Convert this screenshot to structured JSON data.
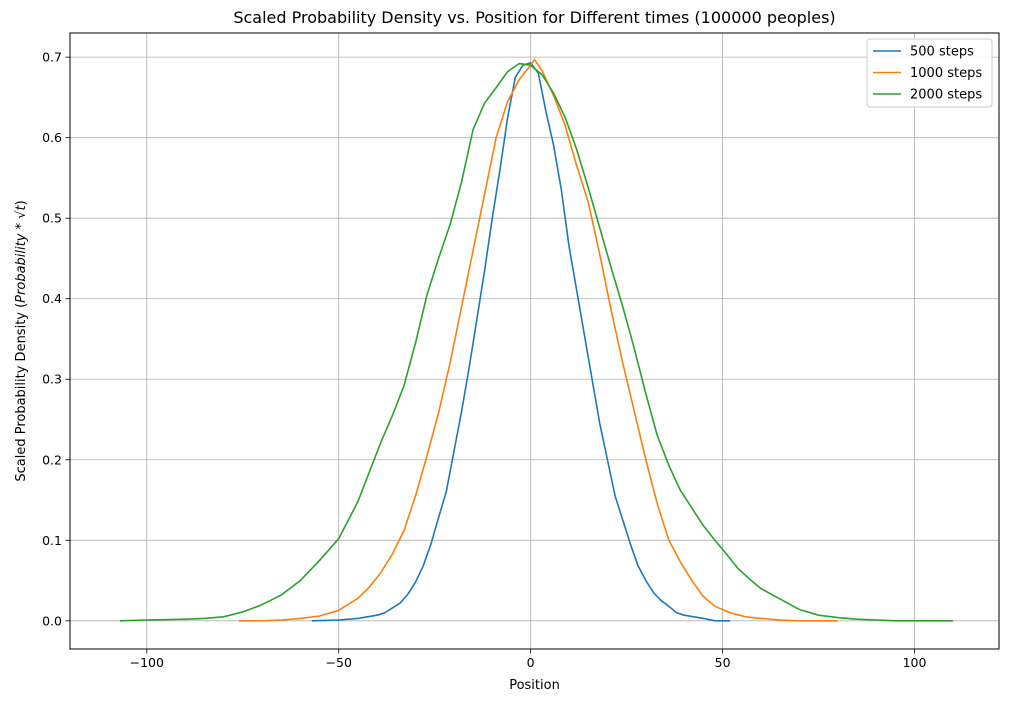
{
  "chart_data": {
    "type": "line",
    "title": "Scaled Probability Density vs. Position for Different times (100000 peoples)",
    "xlabel": "Position",
    "ylabel_prefix": "Scaled Probability Density (",
    "ylabel_math": "Probability * √t",
    "ylabel_suffix": ")",
    "xlim": [
      -120,
      122
    ],
    "ylim": [
      -0.035,
      0.73
    ],
    "xticks": [
      -100,
      -50,
      0,
      50,
      100
    ],
    "xtick_labels": [
      "−100",
      "−50",
      "0",
      "50",
      "100"
    ],
    "yticks": [
      0.0,
      0.1,
      0.2,
      0.3,
      0.4,
      0.5,
      0.6,
      0.7
    ],
    "ytick_labels": [
      "0.0",
      "0.1",
      "0.2",
      "0.3",
      "0.4",
      "0.5",
      "0.6",
      "0.7"
    ],
    "grid": true,
    "legend_position": "top-right",
    "series": [
      {
        "name": "500 steps",
        "color": "#1f77b4",
        "x": [
          -57,
          -50,
          -45,
          -40,
          -38,
          -36,
          -34,
          -32,
          -30,
          -28,
          -26,
          -24,
          -22,
          -20,
          -18,
          -16,
          -14,
          -12,
          -10,
          -8,
          -6,
          -4,
          -2,
          0,
          2,
          4,
          6,
          8,
          10,
          12,
          14,
          16,
          18,
          20,
          22,
          24,
          26,
          28,
          30,
          32,
          34,
          36,
          38,
          40,
          45,
          48,
          52
        ],
        "y": [
          0.0,
          0.001,
          0.003,
          0.007,
          0.01,
          0.016,
          0.022,
          0.033,
          0.048,
          0.068,
          0.095,
          0.128,
          0.16,
          0.21,
          0.26,
          0.315,
          0.375,
          0.435,
          0.5,
          0.56,
          0.625,
          0.675,
          0.69,
          0.693,
          0.68,
          0.632,
          0.59,
          0.535,
          0.465,
          0.41,
          0.355,
          0.3,
          0.245,
          0.2,
          0.155,
          0.125,
          0.095,
          0.068,
          0.05,
          0.035,
          0.025,
          0.018,
          0.01,
          0.007,
          0.003,
          0.0,
          0.0
        ]
      },
      {
        "name": "1000 steps",
        "color": "#ff7f0e",
        "x": [
          -76,
          -70,
          -65,
          -60,
          -55,
          -50,
          -45,
          -42,
          -39,
          -36,
          -33,
          -30,
          -27,
          -24,
          -21,
          -18,
          -15,
          -12,
          -9,
          -6,
          -3,
          0,
          1,
          3,
          6,
          9,
          12,
          15,
          18,
          21,
          24,
          27,
          30,
          33,
          36,
          39,
          42,
          45,
          48,
          52,
          56,
          60,
          65,
          70,
          75,
          80
        ],
        "y": [
          0.0,
          0.0,
          0.001,
          0.003,
          0.006,
          0.013,
          0.028,
          0.042,
          0.06,
          0.083,
          0.112,
          0.155,
          0.205,
          0.258,
          0.32,
          0.39,
          0.46,
          0.53,
          0.6,
          0.645,
          0.672,
          0.69,
          0.697,
          0.683,
          0.652,
          0.615,
          0.565,
          0.52,
          0.455,
          0.385,
          0.32,
          0.26,
          0.2,
          0.145,
          0.1,
          0.073,
          0.05,
          0.03,
          0.018,
          0.01,
          0.005,
          0.003,
          0.001,
          0.0,
          0.0,
          0.0
        ]
      },
      {
        "name": "2000 steps",
        "color": "#2ca02c",
        "x": [
          -107,
          -100,
          -90,
          -85,
          -80,
          -75,
          -70,
          -65,
          -60,
          -55,
          -50,
          -45,
          -42,
          -39,
          -36,
          -33,
          -30,
          -27,
          -24,
          -21,
          -18,
          -15,
          -12,
          -9,
          -6,
          -3,
          0,
          3,
          6,
          9,
          12,
          15,
          18,
          21,
          24,
          27,
          30,
          33,
          36,
          39,
          42,
          45,
          48,
          51,
          54,
          57,
          60,
          65,
          70,
          75,
          80,
          85,
          90,
          95,
          100,
          105,
          110
        ],
        "y": [
          0.0,
          0.001,
          0.002,
          0.003,
          0.005,
          0.011,
          0.02,
          0.032,
          0.05,
          0.075,
          0.102,
          0.148,
          0.185,
          0.222,
          0.255,
          0.292,
          0.345,
          0.405,
          0.45,
          0.492,
          0.545,
          0.61,
          0.643,
          0.662,
          0.682,
          0.692,
          0.69,
          0.678,
          0.655,
          0.625,
          0.585,
          0.538,
          0.488,
          0.438,
          0.39,
          0.338,
          0.282,
          0.23,
          0.193,
          0.162,
          0.14,
          0.118,
          0.1,
          0.083,
          0.065,
          0.052,
          0.04,
          0.027,
          0.014,
          0.007,
          0.004,
          0.002,
          0.001,
          0.0,
          0.0,
          0.0,
          0.0
        ]
      }
    ]
  }
}
